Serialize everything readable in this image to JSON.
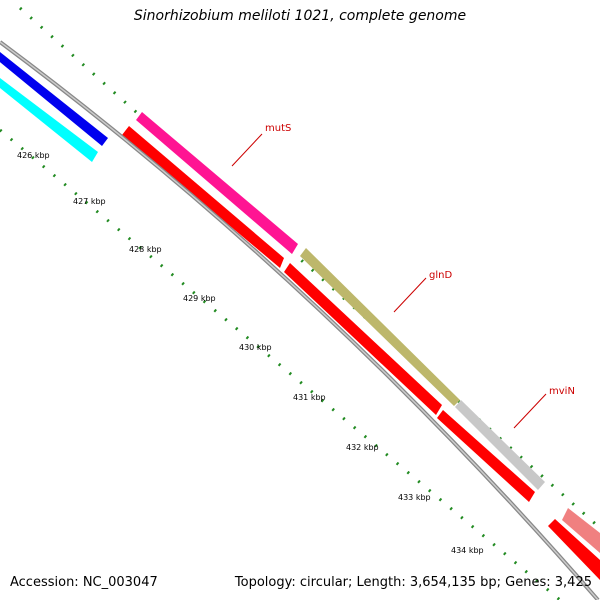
{
  "title": "Sinorhizobium meliloti 1021, complete genome",
  "footer": {
    "accession": "Accession: NC_003047",
    "summary": "Topology: circular; Length: 3,654,135 bp; Genes: 3,425"
  },
  "ticks": [
    "426 kbp",
    "427 kbp",
    "428 kbp",
    "429 kbp",
    "430 kbp",
    "431 kbp",
    "432 kbp",
    "433 kbp",
    "434 kbp"
  ],
  "gene_labels": [
    "mutS",
    "glnD",
    "mviN"
  ],
  "colors": {
    "backbone": "#888888",
    "forward_dots": "#228b22",
    "blue_gene": "#0000ee",
    "cyan_gene": "#00ffff",
    "magenta_gene": "#ff1493",
    "red_gene": "#ff0000",
    "olive_gene": "#bdb76b",
    "gray_gene": "#c8c8c8",
    "salmon_gene": "#f08080",
    "label": "#cc0000"
  }
}
